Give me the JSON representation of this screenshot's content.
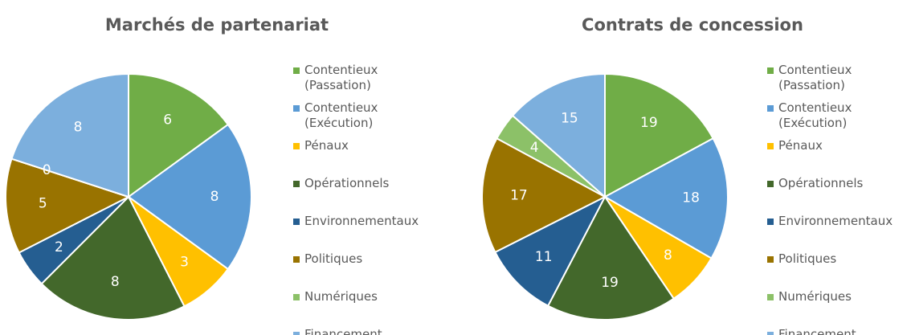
{
  "chart_data": [
    {
      "type": "pie",
      "title": "Marchés de partenariat",
      "categories": [
        "Contentieux (Passation)",
        "Contentieux (Exécution)",
        "Pénaux",
        "Opérationnels",
        "Environnementaux",
        "Politiques",
        "Numériques",
        "Financement"
      ],
      "values": [
        6,
        8,
        3,
        8,
        2,
        5,
        0,
        8
      ],
      "colors": [
        "#70ad47",
        "#5b9bd5",
        "#ffc000",
        "#43682b",
        "#255e91",
        "#997300",
        "#8cc168",
        "#7cafdd"
      ]
    },
    {
      "type": "pie",
      "title": "Contrats de concession",
      "categories": [
        "Contentieux (Passation)",
        "Contentieux (Exécution)",
        "Pénaux",
        "Opérationnels",
        "Environnementaux",
        "Politiques",
        "Numériques",
        "Financement"
      ],
      "values": [
        19,
        18,
        8,
        19,
        11,
        17,
        4,
        15
      ],
      "colors": [
        "#70ad47",
        "#5b9bd5",
        "#ffc000",
        "#43682b",
        "#255e91",
        "#997300",
        "#8cc168",
        "#7cafdd"
      ]
    }
  ]
}
